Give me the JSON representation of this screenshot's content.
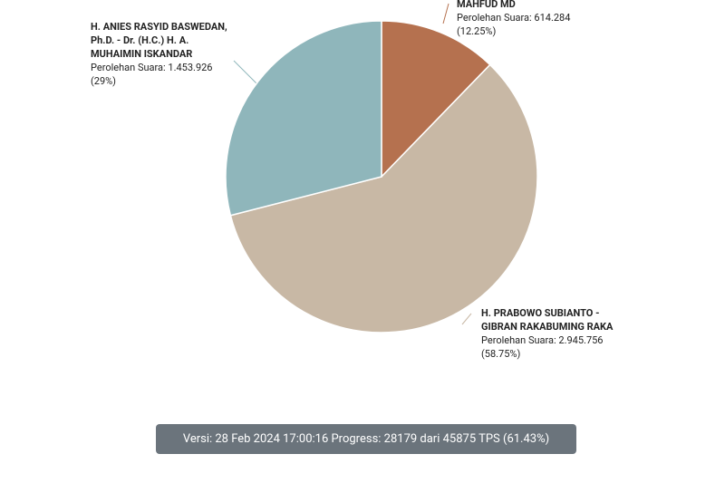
{
  "chart_data": {
    "type": "pie",
    "categories": [
      "MAHFUD MD",
      "H. PRABOWO SUBIANTO - GIBRAN RAKABUMING RAKA",
      "H. ANIES RASYID BASWEDAN, Ph.D. - Dr. (H.C.) H. A. MUHAIMIN ISKANDAR"
    ],
    "values": [
      12.25,
      58.75,
      29
    ],
    "value_labels": [
      "(12.25%)",
      "(58.75%)",
      "(29%)"
    ],
    "vote_labels": [
      "Perolehan Suara: 614.284",
      "Perolehan Suara: 2.945.756",
      "Perolehan Suara: 1.453.926"
    ],
    "colors": [
      "#b5714f",
      "#c8b8a5",
      "#8fb6bb"
    ]
  },
  "footer": {
    "text": "Versi: 28 Feb 2024 17:00:16 Progress: 28179 dari 45875 TPS (61.43%)"
  }
}
